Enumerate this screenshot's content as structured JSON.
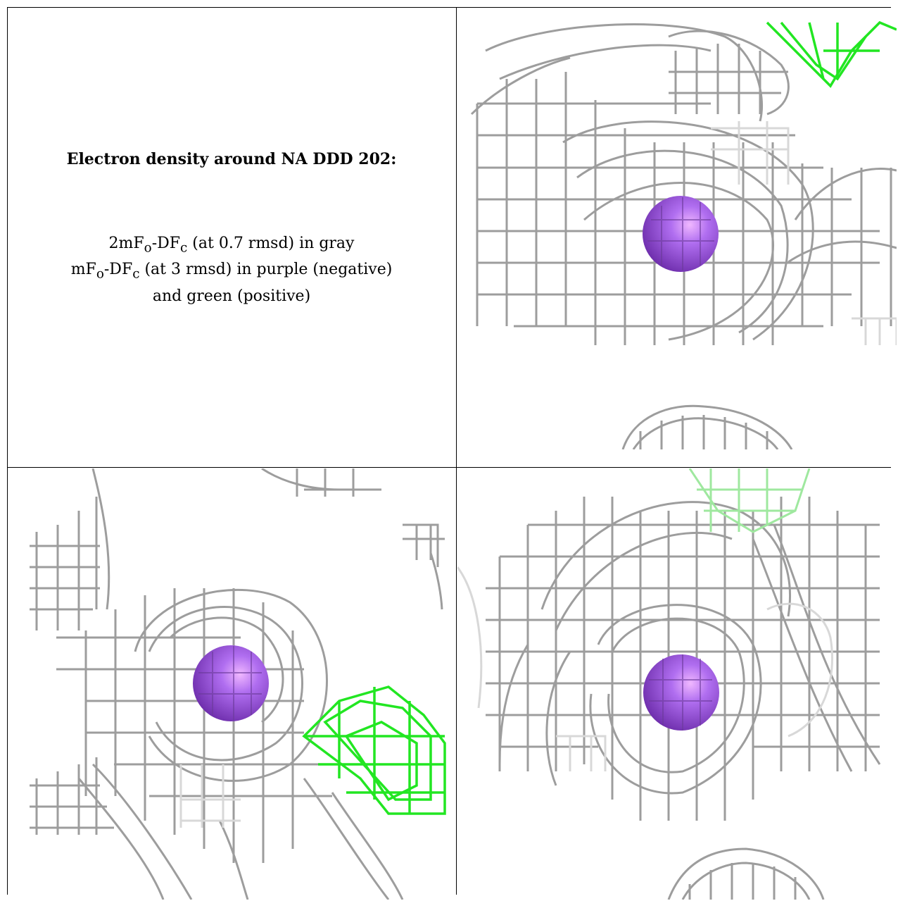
{
  "legend": {
    "title": "Electron density around NA DDD 202:",
    "line1": "2mFo-DFc (at 0.7 rmsd) in gray",
    "line2": "mFo-DFc (at 3 rmsd) in purple (negative)",
    "line3": "and green (positive)"
  },
  "colors": {
    "mesh_gray": "#8c8c8c",
    "mesh_light": "#cfcfcf",
    "positive_green": "#22e622",
    "sphere_purple": "#9a4fe0",
    "border": "#000000"
  },
  "panels": [
    {
      "name": "view-top-right",
      "has_green_blob": true
    },
    {
      "name": "view-bottom-left",
      "has_green_blob": true
    },
    {
      "name": "view-bottom-right",
      "has_green_blob": true
    }
  ]
}
